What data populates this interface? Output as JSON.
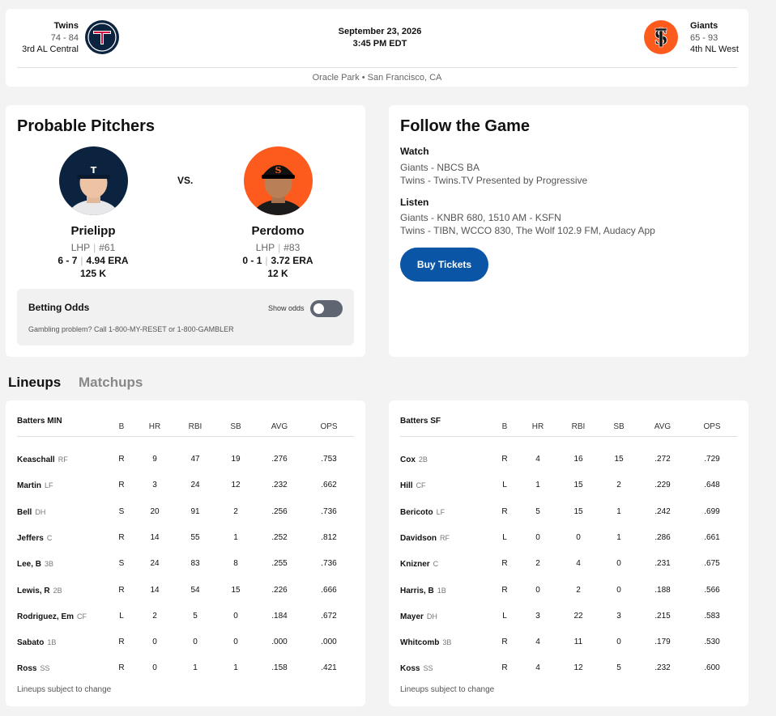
{
  "header": {
    "away": {
      "name": "Twins",
      "record": "74 - 84",
      "standing": "3rd AL Central"
    },
    "home": {
      "name": "Giants",
      "record": "65 - 93",
      "standing": "4th NL West"
    },
    "date": "September 23, 2026",
    "time": "3:45 PM EDT",
    "venue": "Oracle Park • San Francisco, CA",
    "colors": {
      "away": "#0c2340",
      "home": "#fd5a1e"
    }
  },
  "pitchers": {
    "title": "Probable Pitchers",
    "vs": "VS.",
    "away": {
      "name": "Prielipp",
      "throws": "LHP",
      "number": "#61",
      "record": "6 - 7",
      "era": "4.94 ERA",
      "k": "125 K"
    },
    "home": {
      "name": "Perdomo",
      "throws": "LHP",
      "number": "#83",
      "record": "0 - 1",
      "era": "3.72 ERA",
      "k": "12 K"
    }
  },
  "odds": {
    "title": "Betting Odds",
    "show_label": "Show odds",
    "show_enabled": false,
    "note": "Gambling problem? Call 1-800-MY-RESET or 1-800-GAMBLER"
  },
  "follow": {
    "title": "Follow the Game",
    "watch_label": "Watch",
    "watch": [
      "Giants - NBCS BA",
      "Twins - Twins.TV Presented by Progressive"
    ],
    "listen_label": "Listen",
    "listen": [
      "Giants - KNBR 680, 1510 AM - KSFN",
      "Twins - TIBN, WCCO 830, The Wolf 102.9 FM, Audacy App"
    ],
    "button": "Buy Tickets"
  },
  "tabs": {
    "lineups": "Lineups",
    "matchups": "Matchups",
    "active": "lineups"
  },
  "lineups": {
    "columns": [
      "B",
      "HR",
      "RBI",
      "SB",
      "AVG",
      "OPS"
    ],
    "note": "Lineups subject to change",
    "min": {
      "title": "Batters MIN",
      "rows": [
        {
          "name": "Keaschall",
          "pos": "RF",
          "b": "R",
          "hr": "9",
          "rbi": "47",
          "sb": "19",
          "avg": ".276",
          "ops": ".753"
        },
        {
          "name": "Martin",
          "pos": "LF",
          "b": "R",
          "hr": "3",
          "rbi": "24",
          "sb": "12",
          "avg": ".232",
          "ops": ".662"
        },
        {
          "name": "Bell",
          "pos": "DH",
          "b": "S",
          "hr": "20",
          "rbi": "91",
          "sb": "2",
          "avg": ".256",
          "ops": ".736"
        },
        {
          "name": "Jeffers",
          "pos": "C",
          "b": "R",
          "hr": "14",
          "rbi": "55",
          "sb": "1",
          "avg": ".252",
          "ops": ".812"
        },
        {
          "name": "Lee, B",
          "pos": "3B",
          "b": "S",
          "hr": "24",
          "rbi": "83",
          "sb": "8",
          "avg": ".255",
          "ops": ".736"
        },
        {
          "name": "Lewis, R",
          "pos": "2B",
          "b": "R",
          "hr": "14",
          "rbi": "54",
          "sb": "15",
          "avg": ".226",
          "ops": ".666"
        },
        {
          "name": "Rodriguez, Em",
          "pos": "CF",
          "b": "L",
          "hr": "2",
          "rbi": "5",
          "sb": "0",
          "avg": ".184",
          "ops": ".672"
        },
        {
          "name": "Sabato",
          "pos": "1B",
          "b": "R",
          "hr": "0",
          "rbi": "0",
          "sb": "0",
          "avg": ".000",
          "ops": ".000"
        },
        {
          "name": "Ross",
          "pos": "SS",
          "b": "R",
          "hr": "0",
          "rbi": "1",
          "sb": "1",
          "avg": ".158",
          "ops": ".421"
        }
      ]
    },
    "sf": {
      "title": "Batters SF",
      "rows": [
        {
          "name": "Cox",
          "pos": "2B",
          "b": "R",
          "hr": "4",
          "rbi": "16",
          "sb": "15",
          "avg": ".272",
          "ops": ".729"
        },
        {
          "name": "Hill",
          "pos": "CF",
          "b": "L",
          "hr": "1",
          "rbi": "15",
          "sb": "2",
          "avg": ".229",
          "ops": ".648"
        },
        {
          "name": "Bericoto",
          "pos": "LF",
          "b": "R",
          "hr": "5",
          "rbi": "15",
          "sb": "1",
          "avg": ".242",
          "ops": ".699"
        },
        {
          "name": "Davidson",
          "pos": "RF",
          "b": "L",
          "hr": "0",
          "rbi": "0",
          "sb": "1",
          "avg": ".286",
          "ops": ".661"
        },
        {
          "name": "Knizner",
          "pos": "C",
          "b": "R",
          "hr": "2",
          "rbi": "4",
          "sb": "0",
          "avg": ".231",
          "ops": ".675"
        },
        {
          "name": "Harris, B",
          "pos": "1B",
          "b": "R",
          "hr": "0",
          "rbi": "2",
          "sb": "0",
          "avg": ".188",
          "ops": ".566"
        },
        {
          "name": "Mayer",
          "pos": "DH",
          "b": "L",
          "hr": "3",
          "rbi": "22",
          "sb": "3",
          "avg": ".215",
          "ops": ".583"
        },
        {
          "name": "Whitcomb",
          "pos": "3B",
          "b": "R",
          "hr": "4",
          "rbi": "11",
          "sb": "0",
          "avg": ".179",
          "ops": ".530"
        },
        {
          "name": "Koss",
          "pos": "SS",
          "b": "R",
          "hr": "4",
          "rbi": "12",
          "sb": "5",
          "avg": ".232",
          "ops": ".600"
        }
      ]
    }
  }
}
